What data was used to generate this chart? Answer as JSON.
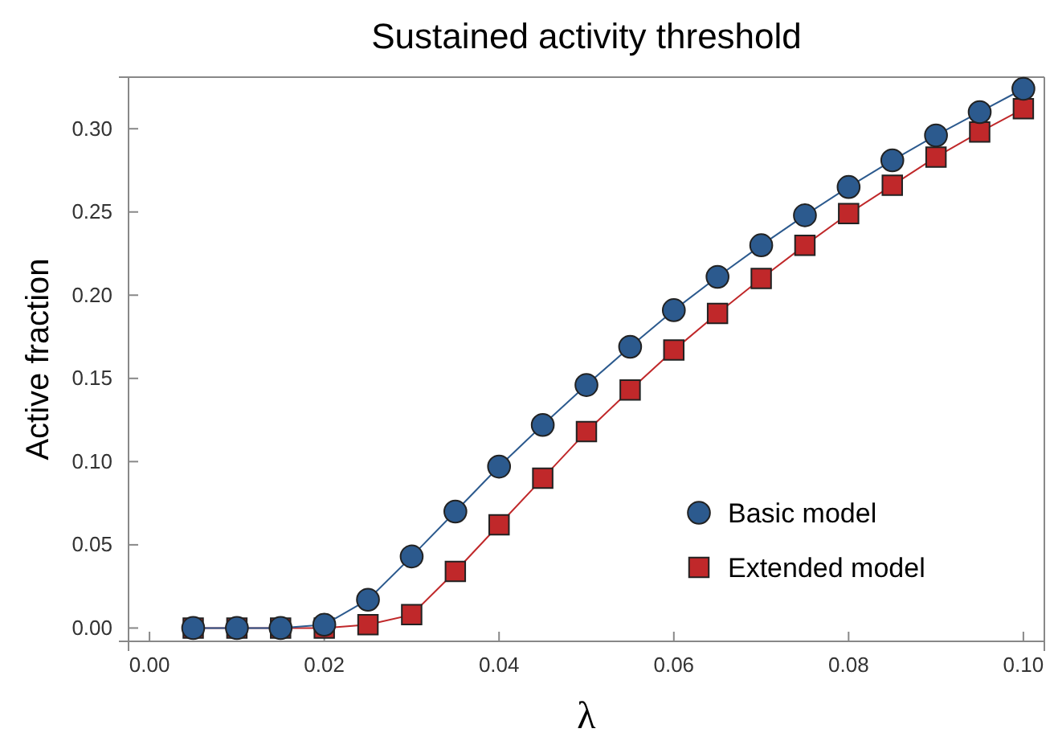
{
  "chart_data": {
    "type": "line",
    "title": "Sustained activity threshold",
    "xlabel": "λ",
    "ylabel": "Active fraction",
    "x": [
      0.005,
      0.01,
      0.015,
      0.02,
      0.025,
      0.03,
      0.035,
      0.04,
      0.045,
      0.05,
      0.055,
      0.06,
      0.065,
      0.07,
      0.075,
      0.08,
      0.085,
      0.09,
      0.095,
      0.1
    ],
    "series": [
      {
        "name": "Basic model",
        "color": "#2c5a8e",
        "marker": "circle",
        "values": [
          0,
          0,
          0,
          0.002,
          0.017,
          0.043,
          0.07,
          0.097,
          0.122,
          0.146,
          0.169,
          0.191,
          0.211,
          0.23,
          0.248,
          0.265,
          0.281,
          0.296,
          0.31,
          0.324
        ]
      },
      {
        "name": "Extended model",
        "color": "#c0282a",
        "marker": "square",
        "values": [
          0,
          0,
          0,
          0,
          0.002,
          0.008,
          0.034,
          0.062,
          0.09,
          0.118,
          0.143,
          0.167,
          0.189,
          0.21,
          0.23,
          0.249,
          0.266,
          0.283,
          0.298,
          0.312
        ]
      }
    ],
    "xlim": [
      -0.0024,
      0.1024
    ],
    "ylim": [
      -0.008,
      0.331
    ],
    "xticks": [
      {
        "value": 0,
        "label": "0.00"
      },
      {
        "value": 0.02,
        "label": "0.02"
      },
      {
        "value": 0.04,
        "label": "0.04"
      },
      {
        "value": 0.06,
        "label": "0.06"
      },
      {
        "value": 0.08,
        "label": "0.08"
      },
      {
        "value": 0.1,
        "label": "0.10"
      }
    ],
    "yticks": [
      {
        "value": 0,
        "label": "0.00"
      },
      {
        "value": 0.05,
        "label": "0.05"
      },
      {
        "value": 0.1,
        "label": "0.10"
      },
      {
        "value": 0.15,
        "label": "0.15"
      },
      {
        "value": 0.2,
        "label": "0.20"
      },
      {
        "value": 0.25,
        "label": "0.25"
      },
      {
        "value": 0.3,
        "label": "0.30"
      }
    ],
    "grid": false,
    "legend": "bottom right"
  }
}
